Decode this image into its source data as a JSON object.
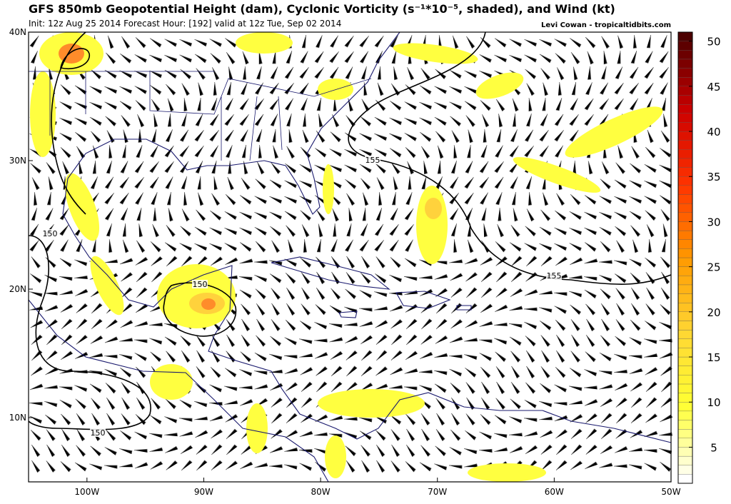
{
  "header": {
    "title": "GFS 850mb Geopotential Height (dam), Cyclonic Vorticity (s⁻¹*10⁻⁵, shaded), and Wind (kt)",
    "subtitle": "Init: 12z Aug 25 2014 Forecast Hour: [192] valid at 12z Tue, Sep 02 2014",
    "credit": "Levi Cowan - tropicaltidbits.com"
  },
  "map": {
    "lon_range": [
      -105,
      -50
    ],
    "lat_range": [
      5,
      40
    ],
    "lon_ticks": [
      {
        "value": -100,
        "label": "100W"
      },
      {
        "value": -90,
        "label": "90W"
      },
      {
        "value": -80,
        "label": "80W"
      },
      {
        "value": -70,
        "label": "70W"
      },
      {
        "value": -60,
        "label": "60W"
      },
      {
        "value": -50,
        "label": "50W"
      }
    ],
    "lat_ticks": [
      {
        "value": 10,
        "label": "10N"
      },
      {
        "value": 20,
        "label": "20N"
      },
      {
        "value": 30,
        "label": "30N"
      },
      {
        "value": 40,
        "label": "40N"
      }
    ],
    "contour_labels": [
      150,
      150,
      150,
      155,
      155
    ]
  },
  "colorbar": {
    "range": [
      1,
      51
    ],
    "ticks": [
      5,
      10,
      15,
      20,
      25,
      30,
      35,
      40,
      45,
      50
    ],
    "colors": [
      "#ffffff",
      "#ffff33",
      "#ffd633",
      "#ff9900",
      "#ff3300",
      "#cc0000",
      "#4d0000"
    ]
  }
}
